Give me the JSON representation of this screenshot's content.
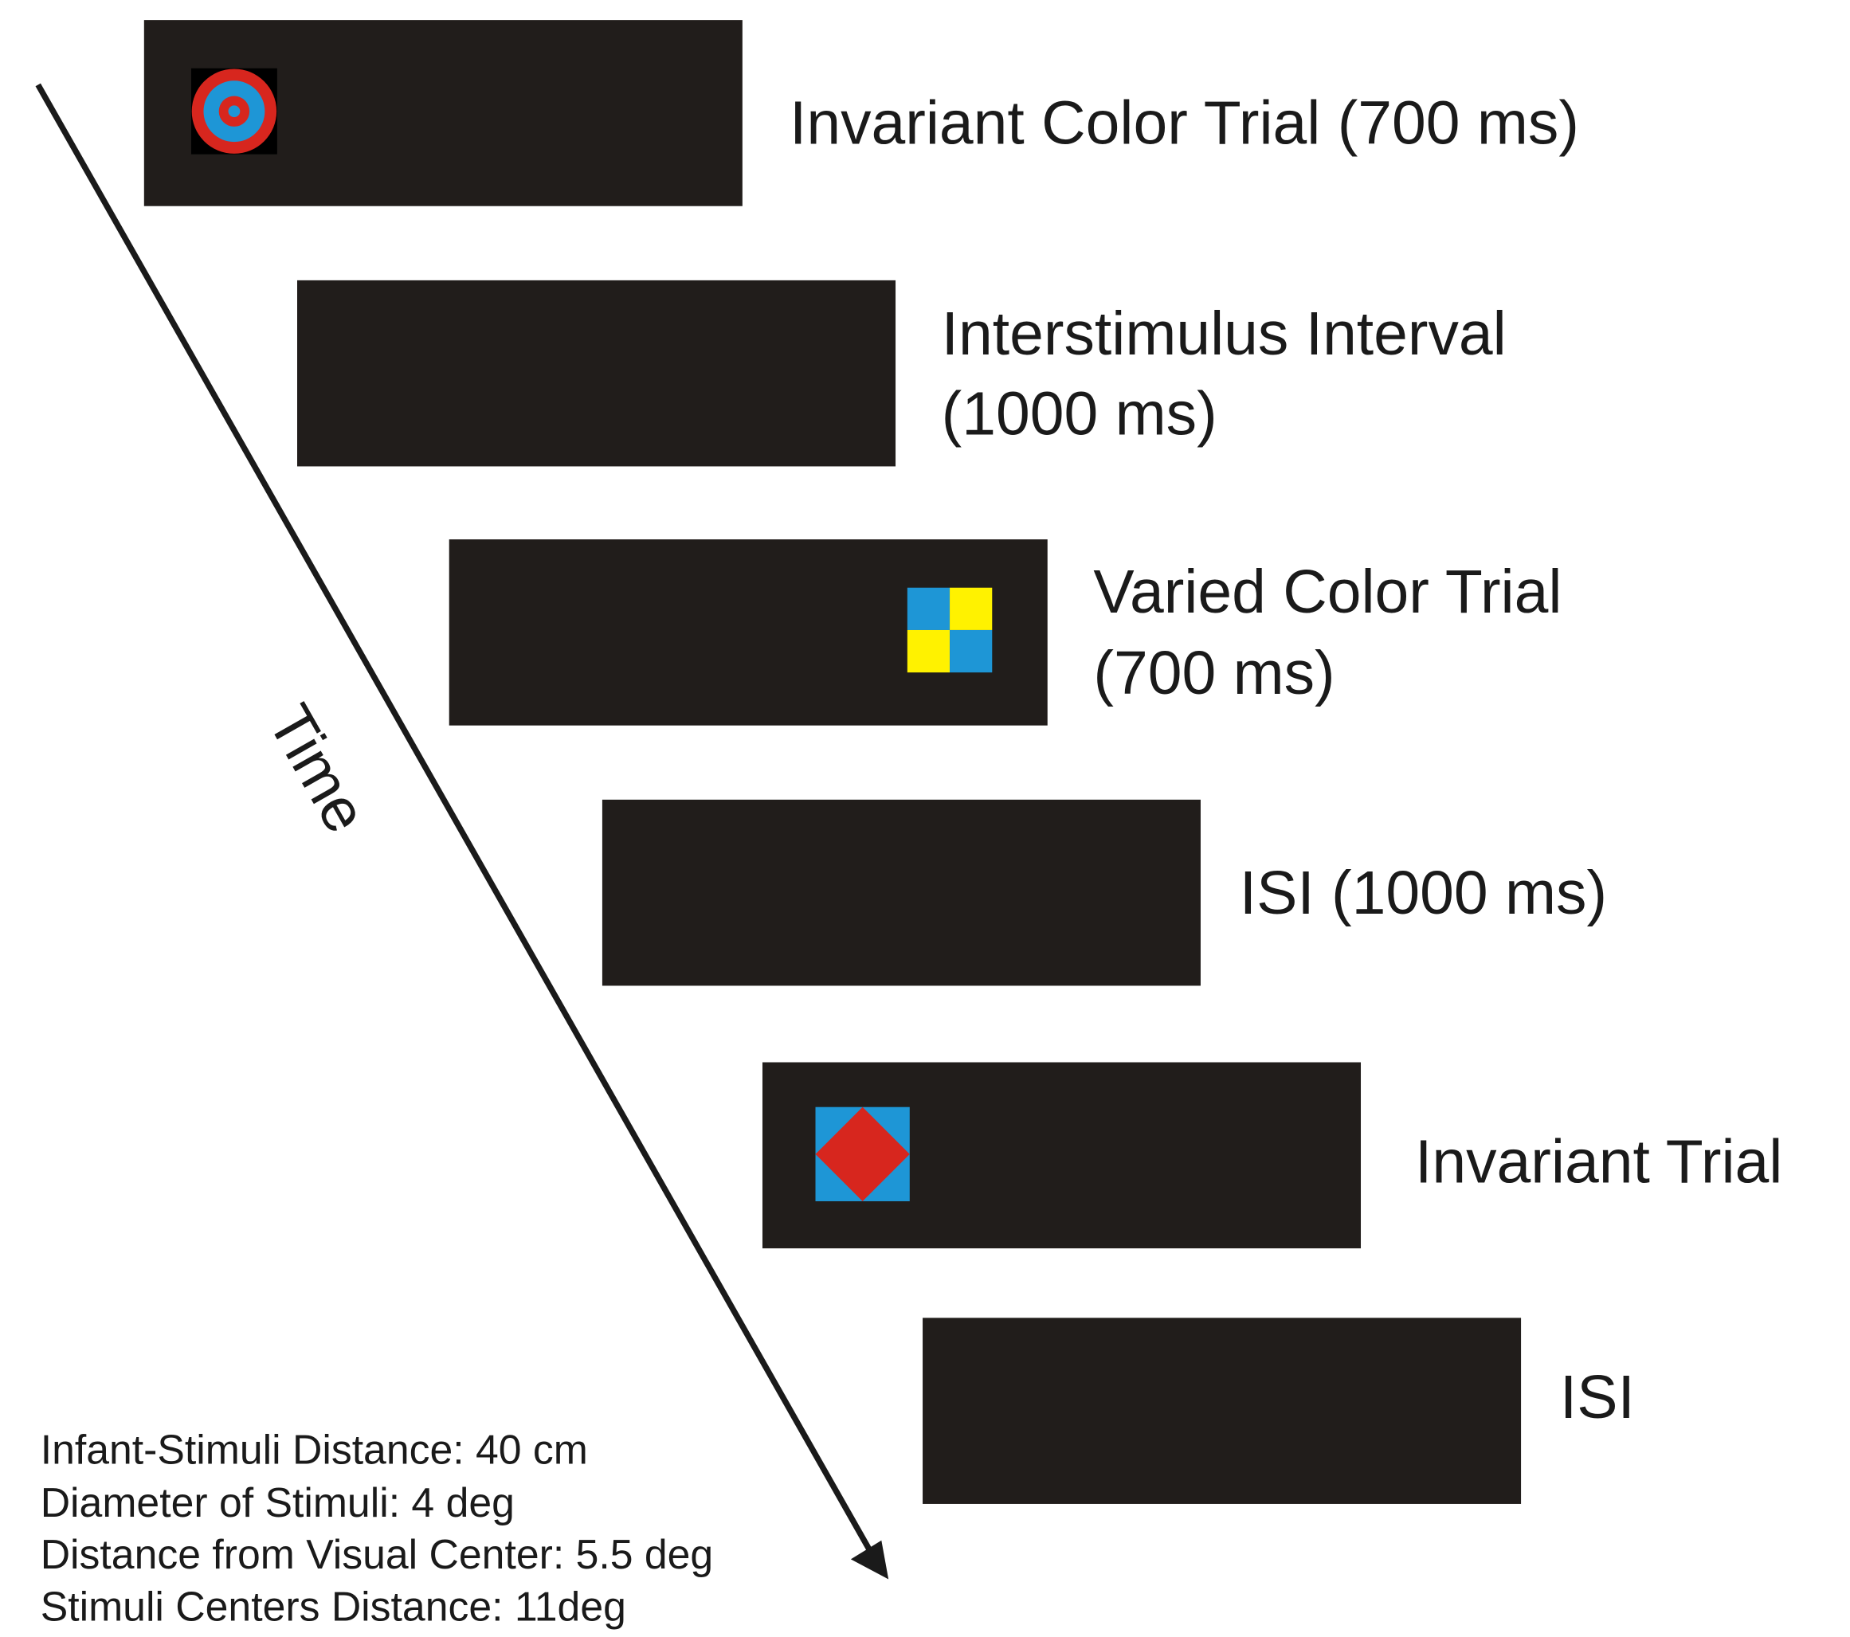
{
  "panels": [
    {
      "label_lines": [
        "Invariant Color Trial (700 ms)"
      ]
    },
    {
      "label_lines": [
        "Interstimulus Interval",
        "(1000 ms)"
      ]
    },
    {
      "label_lines": [
        "Varied Color Trial",
        "(700 ms)"
      ]
    },
    {
      "label_lines": [
        "ISI (1000 ms)"
      ]
    },
    {
      "label_lines": [
        "Invariant Trial"
      ]
    },
    {
      "label_lines": [
        "ISI"
      ]
    }
  ],
  "time_label": "Time",
  "notes": [
    "Infant-Stimuli Distance: 40 cm",
    "Diameter of Stimuli: 4 deg",
    "Distance from Visual Center: 5.5 deg",
    "Stimuli Centers Distance: 11deg"
  ]
}
